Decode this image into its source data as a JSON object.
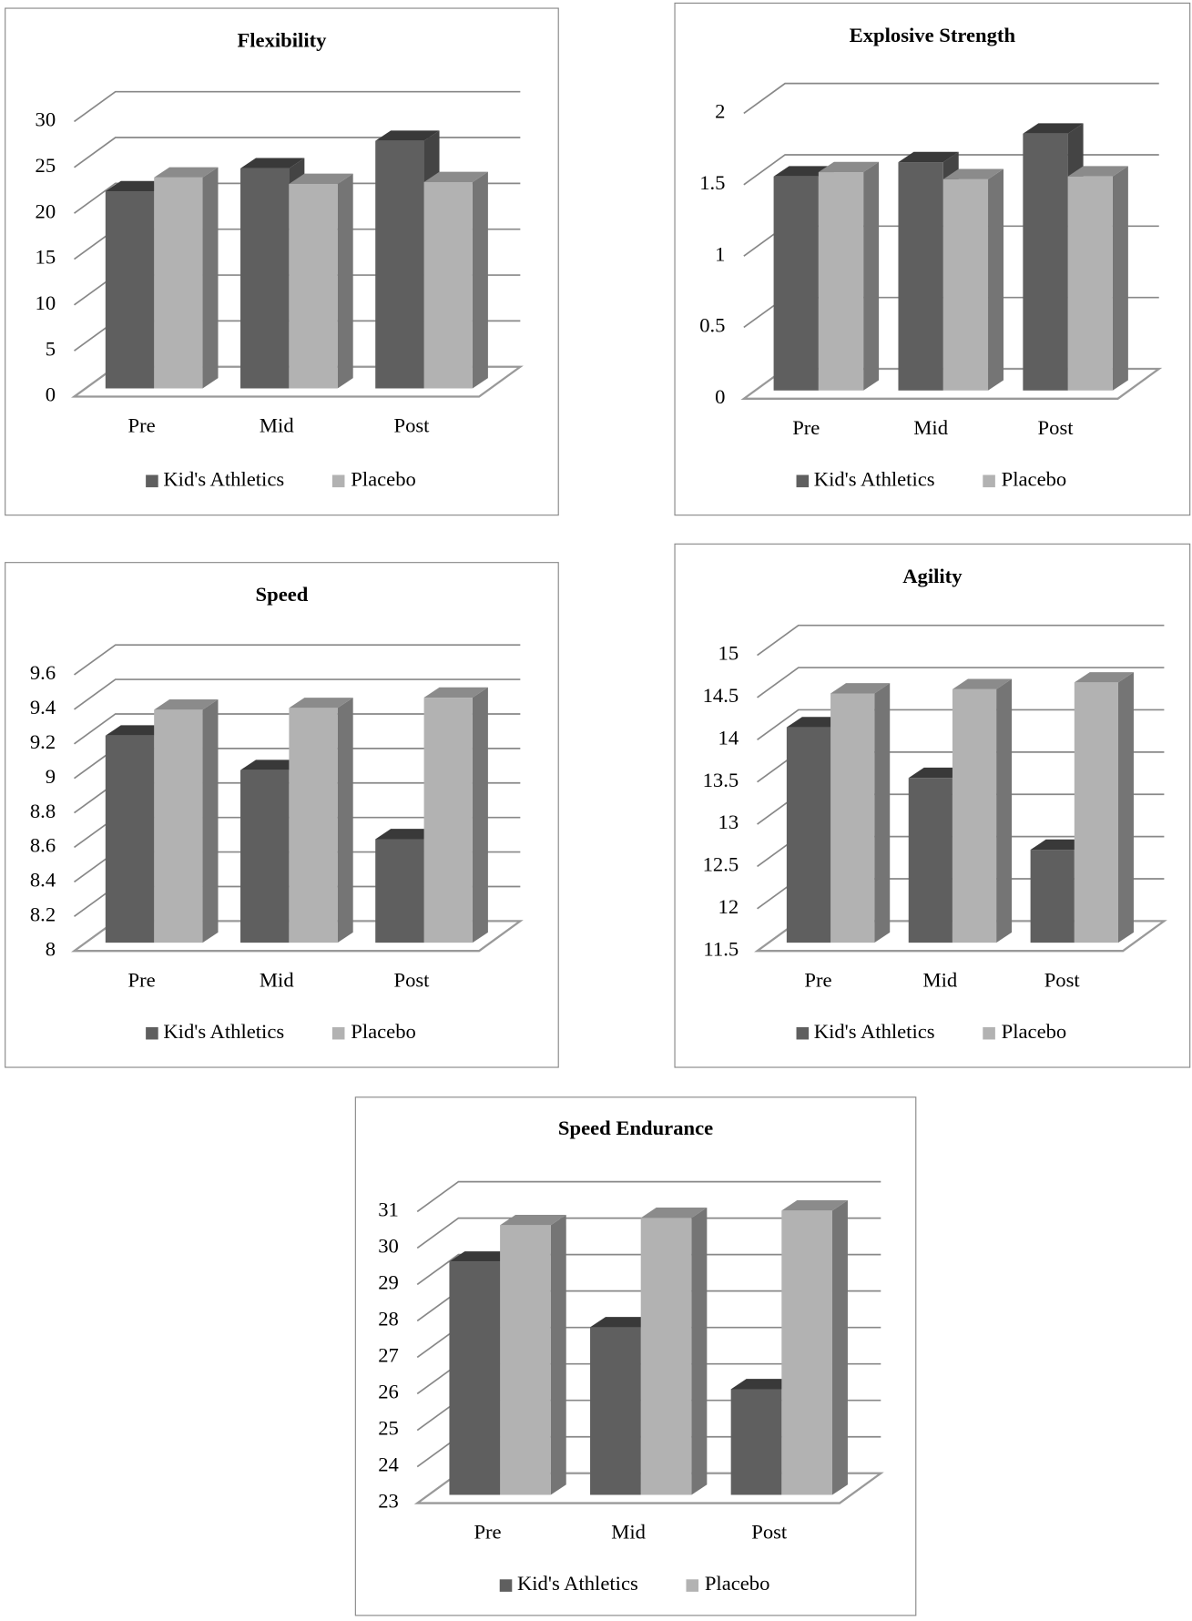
{
  "chart_data": [
    {
      "type": "bar3d",
      "title": "Flexibility",
      "categories": [
        "Pre",
        "Mid",
        "Post"
      ],
      "series": [
        {
          "name": "Kid's Athletics",
          "color": "#5f5f5f",
          "values": [
            21.5,
            24,
            27
          ]
        },
        {
          "name": "Placebo",
          "color": "#b2b2b2",
          "values": [
            23,
            22.3,
            22.5
          ]
        }
      ],
      "ylim": [
        0,
        30
      ],
      "yticks": [
        0,
        5,
        10,
        15,
        20,
        25,
        30
      ],
      "grid": true,
      "legend": "bottom"
    },
    {
      "type": "bar3d",
      "title": "Explosive Strength",
      "categories": [
        "Pre",
        "Mid",
        "Post"
      ],
      "series": [
        {
          "name": "Kid's Athletics",
          "color": "#5f5f5f",
          "values": [
            1.5,
            1.6,
            1.8
          ]
        },
        {
          "name": "Placebo",
          "color": "#b2b2b2",
          "values": [
            1.53,
            1.48,
            1.5
          ]
        }
      ],
      "ylim": [
        0,
        2
      ],
      "yticks": [
        0,
        0.5,
        1,
        1.5,
        2
      ],
      "grid": true,
      "legend": "bottom"
    },
    {
      "type": "bar3d",
      "title": "Speed",
      "categories": [
        "Pre",
        "Mid",
        "Post"
      ],
      "series": [
        {
          "name": "Kid's Athletics",
          "color": "#5f5f5f",
          "values": [
            9.2,
            9.0,
            8.6
          ]
        },
        {
          "name": "Placebo",
          "color": "#b2b2b2",
          "values": [
            9.35,
            9.36,
            9.42
          ]
        }
      ],
      "ylim": [
        8,
        9.6
      ],
      "yticks": [
        8,
        8.2,
        8.4,
        8.6,
        8.8,
        9,
        9.2,
        9.4,
        9.6
      ],
      "grid": true,
      "legend": "bottom"
    },
    {
      "type": "bar3d",
      "title": "Agility",
      "categories": [
        "Pre",
        "Mid",
        "Post"
      ],
      "series": [
        {
          "name": "Kid's Athletics",
          "color": "#5f5f5f",
          "values": [
            14.05,
            13.45,
            12.6
          ]
        },
        {
          "name": "Placebo",
          "color": "#b2b2b2",
          "values": [
            14.45,
            14.5,
            14.58
          ]
        }
      ],
      "ylim": [
        11.5,
        15
      ],
      "yticks": [
        11.5,
        12,
        12.5,
        13,
        13.5,
        14,
        14.5,
        15
      ],
      "grid": true,
      "legend": "bottom"
    },
    {
      "type": "bar3d",
      "title": "Speed Endurance",
      "categories": [
        "Pre",
        "Mid",
        "Post"
      ],
      "series": [
        {
          "name": "Kid's Athletics",
          "color": "#5f5f5f",
          "values": [
            29.4,
            27.6,
            25.9
          ]
        },
        {
          "name": "Placebo",
          "color": "#b2b2b2",
          "values": [
            30.4,
            30.6,
            30.8
          ]
        }
      ],
      "ylim": [
        23,
        31
      ],
      "yticks": [
        23,
        24,
        25,
        26,
        27,
        28,
        29,
        30,
        31
      ],
      "grid": true,
      "legend": "bottom"
    }
  ]
}
